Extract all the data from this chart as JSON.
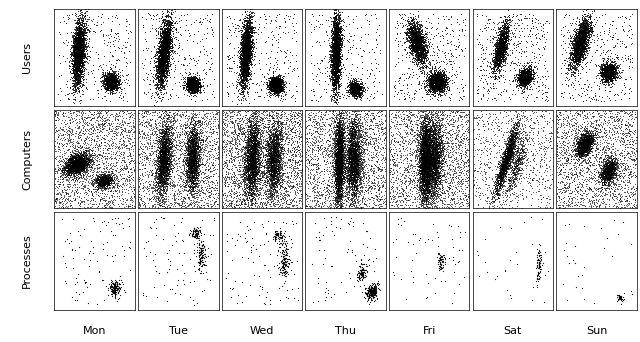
{
  "rows": [
    "Users",
    "Computers",
    "Processes"
  ],
  "cols": [
    "Mon",
    "Tue",
    "Wed",
    "Thu",
    "Fri",
    "Sat",
    "Sun"
  ],
  "background_color": "#ffffff",
  "point_color": "black",
  "row_label_fontsize": 8,
  "col_label_fontsize": 8
}
